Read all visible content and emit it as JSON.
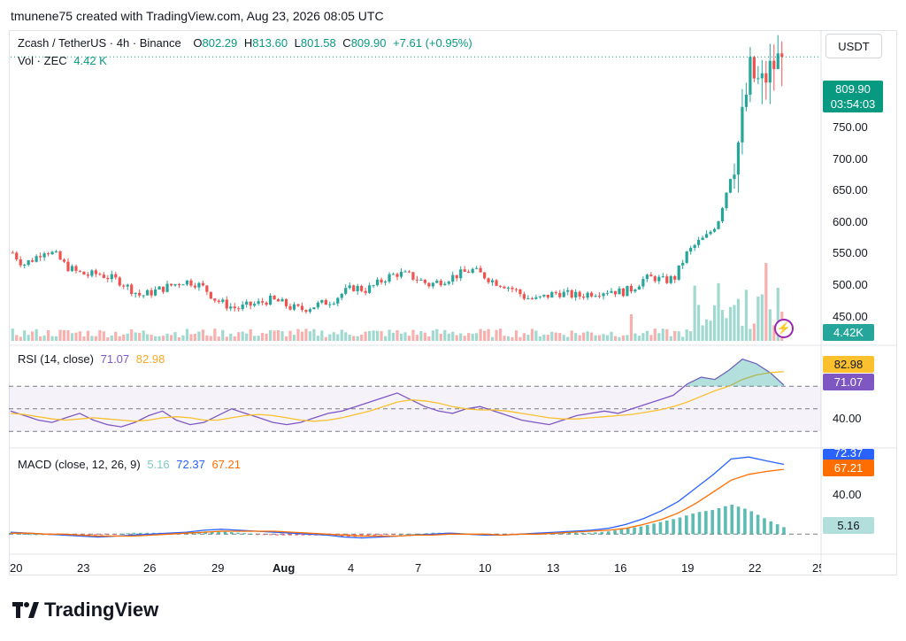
{
  "header": {
    "text": "tmunene75 created with TradingView.com, Aug 23, 2026 08:05 UTC"
  },
  "price_legend": {
    "symbol": "Zcash / TetherUS · 4h · Binance",
    "o_label": "O",
    "o_value": "802.29",
    "h_label": "H",
    "h_value": "813.60",
    "l_label": "L",
    "l_value": "801.58",
    "c_label": "C",
    "c_value": "809.90",
    "change": "+7.61 (+0.95%)"
  },
  "vol_legend": {
    "label": "Vol · ZEC",
    "value": "4.42 K"
  },
  "rsi_legend": {
    "label": "RSI (14, close)",
    "rsi": "71.07",
    "ma": "82.98"
  },
  "macd_legend": {
    "label": "MACD (close, 12, 26, 9)",
    "hist": "5.16",
    "macd": "72.37",
    "signal": "67.21"
  },
  "currency_button": "USDT",
  "price_tags": {
    "last": "809.90",
    "countdown": "03:54:03",
    "volume": "4.42K"
  },
  "rsi_tags": {
    "ma": "82.98",
    "rsi": "71.07"
  },
  "macd_tags": {
    "macd": "72.37",
    "signal": "67.21",
    "hist": "5.16"
  },
  "price_axis": [
    "750.00",
    "700.00",
    "650.00",
    "600.00",
    "550.00",
    "500.00",
    "450.00"
  ],
  "rsi_axis": [
    "40.00"
  ],
  "macd_axis": [
    "40.00"
  ],
  "time_axis": [
    "20",
    "23",
    "26",
    "29",
    "Aug",
    "4",
    "7",
    "10",
    "13",
    "16",
    "19",
    "22",
    "25"
  ],
  "brand": "TradingView",
  "colors": {
    "up": "#26a69a",
    "down": "#ef5350",
    "rsi": "#7e57c2",
    "rsi_ma": "#fbc02d",
    "macd": "#2962ff",
    "signal": "#ff6d00",
    "tag_green": "#089981"
  },
  "chart_data": [
    {
      "type": "candlestick",
      "title": "Zcash / TetherUS · 4h · Binance",
      "ylabel": "USDT",
      "ylim": [
        430,
        815
      ],
      "x_ticks": [
        "20",
        "23",
        "26",
        "29",
        "Aug",
        "4",
        "7",
        "10",
        "13",
        "16",
        "19",
        "22",
        "25"
      ],
      "close_path": [
        [
          0,
          548
        ],
        [
          1,
          532
        ],
        [
          2,
          540
        ],
        [
          3,
          552
        ],
        [
          4,
          545
        ],
        [
          5,
          530
        ],
        [
          6,
          522
        ],
        [
          7,
          518
        ],
        [
          8,
          520
        ],
        [
          9,
          515
        ],
        [
          10,
          510
        ],
        [
          11,
          500
        ],
        [
          12,
          490
        ],
        [
          13,
          495
        ],
        [
          14,
          500
        ],
        [
          15,
          505
        ],
        [
          16,
          510
        ],
        [
          17,
          508
        ],
        [
          18,
          500
        ],
        [
          19,
          485
        ],
        [
          20,
          478
        ],
        [
          21,
          473
        ],
        [
          22,
          477
        ],
        [
          23,
          480
        ],
        [
          24,
          485
        ],
        [
          25,
          482
        ],
        [
          26,
          475
        ],
        [
          27,
          472
        ],
        [
          28,
          476
        ],
        [
          29,
          480
        ],
        [
          30,
          485
        ],
        [
          31,
          495
        ],
        [
          32,
          502
        ],
        [
          33,
          498
        ],
        [
          34,
          505
        ],
        [
          35,
          515
        ],
        [
          36,
          520
        ],
        [
          37,
          518
        ],
        [
          38,
          512
        ],
        [
          39,
          505
        ],
        [
          40,
          510
        ],
        [
          41,
          515
        ],
        [
          42,
          520
        ],
        [
          43,
          525
        ],
        [
          44,
          518
        ],
        [
          45,
          510
        ],
        [
          46,
          505
        ],
        [
          47,
          498
        ],
        [
          48,
          488
        ],
        [
          49,
          485
        ],
        [
          50,
          490
        ],
        [
          51,
          495
        ],
        [
          52,
          492
        ],
        [
          53,
          490
        ],
        [
          54,
          494
        ],
        [
          55,
          496
        ],
        [
          56,
          498
        ],
        [
          57,
          495
        ],
        [
          58,
          500
        ],
        [
          59,
          512
        ],
        [
          60,
          515
        ],
        [
          61,
          510
        ],
        [
          62,
          515
        ],
        [
          63,
          545
        ],
        [
          64,
          560
        ],
        [
          65,
          570
        ],
        [
          66,
          590
        ],
        [
          67,
          640
        ],
        [
          68,
          700
        ],
        [
          69,
          790
        ],
        [
          70,
          770
        ],
        [
          71,
          795
        ],
        [
          72,
          809.9
        ]
      ],
      "last_price": 809.9
    },
    {
      "type": "bar",
      "title": "Vol · ZEC",
      "last_value": "4.42K",
      "note": "volume histogram, largest bars near Aug 21-22"
    },
    {
      "type": "line",
      "title": "RSI (14, close)",
      "series": [
        {
          "name": "RSI",
          "last": 71.07,
          "values": [
            48,
            44,
            40,
            38,
            42,
            46,
            40,
            36,
            34,
            38,
            44,
            48,
            40,
            36,
            38,
            44,
            50,
            46,
            42,
            38,
            36,
            38,
            42,
            46,
            48,
            52,
            56,
            60,
            64,
            58,
            52,
            48,
            46,
            50,
            52,
            48,
            44,
            40,
            38,
            36,
            40,
            44,
            46,
            48,
            46,
            50,
            54,
            58,
            62,
            72,
            78,
            76,
            84,
            94,
            90,
            82,
            71
          ]
        },
        {
          "name": "RSI MA",
          "last": 82.98,
          "values": [
            46,
            45,
            43,
            41,
            40,
            41,
            42,
            41,
            40,
            39,
            40,
            42,
            43,
            42,
            40,
            40,
            42,
            44,
            45,
            44,
            42,
            40,
            39,
            40,
            42,
            45,
            48,
            52,
            56,
            58,
            57,
            55,
            52,
            50,
            49,
            49,
            48,
            46,
            44,
            42,
            41,
            41,
            42,
            43,
            44,
            45,
            47,
            49,
            52,
            56,
            61,
            66,
            70,
            76,
            80,
            82,
            82.98
          ]
        }
      ],
      "bands": [
        30,
        50,
        70
      ]
    },
    {
      "type": "line",
      "title": "MACD (close, 12, 26, 9)",
      "series": [
        {
          "name": "MACD",
          "last": 72.37,
          "values": [
            2,
            1,
            0,
            -1,
            -2,
            -3,
            -2,
            -1,
            0,
            1,
            2,
            4,
            5,
            4,
            3,
            2,
            1,
            0,
            -1,
            -3,
            -4,
            -3,
            -2,
            -1,
            0,
            1,
            0,
            -1,
            -1,
            0,
            1,
            2,
            3,
            4,
            6,
            10,
            16,
            24,
            34,
            48,
            62,
            78,
            80,
            76,
            72.37
          ]
        },
        {
          "name": "Signal",
          "last": 67.21,
          "values": [
            1,
            1,
            0,
            0,
            -1,
            -2,
            -2,
            -2,
            -1,
            0,
            1,
            2,
            3,
            3,
            3,
            3,
            2,
            1,
            0,
            -1,
            -2,
            -2,
            -2,
            -1,
            -1,
            0,
            0,
            0,
            -1,
            0,
            0,
            1,
            2,
            3,
            4,
            6,
            10,
            15,
            22,
            32,
            44,
            56,
            62,
            65,
            67.21
          ]
        },
        {
          "name": "Histogram",
          "last": 5.16
        }
      ]
    }
  ]
}
